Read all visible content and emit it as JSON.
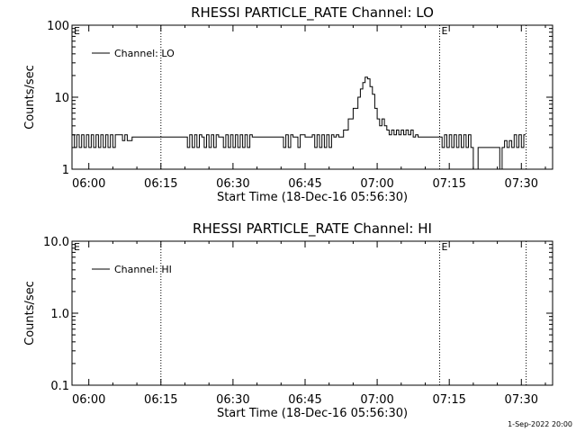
{
  "footer": {
    "timestamp": "1-Sep-2022 20:00"
  },
  "chart_data": [
    {
      "type": "line",
      "title": "RHESSI PARTICLE_RATE Channel: LO",
      "xlabel": "Start Time (18-Dec-16 05:56:30)",
      "ylabel": "Counts/sec",
      "xlim": [
        "05:56:30",
        "07:36:30"
      ],
      "x_ticks": [
        "06:00",
        "06:15",
        "06:30",
        "06:45",
        "07:00",
        "07:15",
        "07:30"
      ],
      "ylim": [
        1,
        100
      ],
      "y_scale": "log",
      "y_ticks": [
        "1",
        "10",
        "100"
      ],
      "grid": false,
      "legend_position": "top-left",
      "event_markers": [
        {
          "time": "05:56:30",
          "label": "E"
        },
        {
          "time": "07:13:00",
          "label": "E"
        }
      ],
      "dotted_lines": [
        "06:15",
        "07:13",
        "07:31"
      ],
      "series": [
        {
          "name": "Channel: LO",
          "x": [
            "05:56:30",
            "05:57:00",
            "05:57:30",
            "05:58:00",
            "05:58:30",
            "05:59:00",
            "05:59:30",
            "06:00:00",
            "06:00:30",
            "06:01:00",
            "06:01:30",
            "06:02:00",
            "06:02:30",
            "06:03:00",
            "06:03:30",
            "06:04:00",
            "06:04:30",
            "06:05:00",
            "06:05:30",
            "06:06:00",
            "06:06:30",
            "06:07:00",
            "06:07:30",
            "06:08:00",
            "06:09:00",
            "06:10:00",
            "06:11:00",
            "06:12:00",
            "06:13:00",
            "06:14:00",
            "06:15:00",
            "06:18:00",
            "06:20:00",
            "06:20:30",
            "06:21:00",
            "06:21:30",
            "06:22:00",
            "06:22:30",
            "06:23:00",
            "06:23:30",
            "06:24:00",
            "06:24:30",
            "06:25:00",
            "06:25:30",
            "06:26:00",
            "06:26:30",
            "06:27:00",
            "06:28:00",
            "06:28:30",
            "06:29:00",
            "06:29:30",
            "06:30:00",
            "06:30:30",
            "06:31:00",
            "06:31:30",
            "06:32:00",
            "06:32:30",
            "06:33:00",
            "06:33:30",
            "06:34:00",
            "06:34:30",
            "06:35:00",
            "06:40:00",
            "06:40:30",
            "06:41:00",
            "06:41:30",
            "06:42:00",
            "06:42:30",
            "06:43:00",
            "06:43:30",
            "06:44:00",
            "06:45:00",
            "06:46:00",
            "06:46:30",
            "06:47:00",
            "06:47:30",
            "06:48:00",
            "06:48:30",
            "06:49:00",
            "06:49:30",
            "06:50:00",
            "06:50:30",
            "06:51:00",
            "06:51:30",
            "06:52:00",
            "06:53:00",
            "06:54:00",
            "06:55:00",
            "06:56:00",
            "06:56:30",
            "06:57:00",
            "06:57:30",
            "06:58:00",
            "06:58:30",
            "06:59:00",
            "06:59:30",
            "07:00:00",
            "07:00:30",
            "07:01:00",
            "07:01:30",
            "07:02:00",
            "07:02:30",
            "07:03:00",
            "07:03:30",
            "07:04:00",
            "07:04:30",
            "07:05:00",
            "07:05:30",
            "07:06:00",
            "07:06:30",
            "07:07:00",
            "07:07:30",
            "07:08:00",
            "07:08:30",
            "07:09:00",
            "07:09:30",
            "07:10:00",
            "07:13:00",
            "07:13:30",
            "07:14:00",
            "07:14:30",
            "07:15:00",
            "07:15:30",
            "07:16:00",
            "07:16:30",
            "07:17:00",
            "07:17:30",
            "07:18:00",
            "07:18:30",
            "07:19:00",
            "07:19:30",
            "07:20:00",
            "07:21:00",
            "07:22:00",
            "07:23:00",
            "07:24:00",
            "07:25:00",
            "07:25:30",
            "07:26:00",
            "07:26:30",
            "07:27:00",
            "07:27:30",
            "07:28:00",
            "07:28:30",
            "07:29:00",
            "07:29:30",
            "07:30:00",
            "07:30:30"
          ],
          "y": [
            3,
            2,
            3,
            2,
            3,
            2,
            3,
            2,
            3,
            2,
            3,
            2,
            3,
            2,
            3,
            2,
            3,
            2,
            3,
            3,
            3,
            2.5,
            3,
            2.5,
            2.8,
            2.8,
            2.8,
            2.8,
            2.8,
            2.8,
            2.8,
            2.8,
            2.8,
            2,
            3,
            2,
            3,
            2,
            3,
            2.8,
            2,
            3,
            2,
            3,
            2,
            3,
            2.8,
            2,
            3,
            2,
            3,
            2,
            3,
            2,
            3,
            2,
            3,
            2,
            3,
            2.8,
            2.8,
            2.8,
            2.8,
            2,
            3,
            2,
            3,
            2.8,
            2.8,
            2,
            3,
            2.8,
            2.8,
            3,
            2,
            3,
            2,
            3,
            2,
            3,
            2,
            3,
            2.8,
            3,
            2.8,
            3.5,
            5,
            7,
            10,
            13,
            16,
            19,
            18,
            14,
            11,
            7,
            5,
            4,
            5,
            4,
            3.5,
            3,
            3.5,
            3,
            3.5,
            3,
            3.5,
            3,
            3.5,
            3,
            3.5,
            2.8,
            3,
            2.8,
            2.8,
            2.8,
            2.8,
            2.8,
            2,
            3,
            2,
            3,
            2,
            3,
            2,
            3,
            2,
            3,
            2,
            3,
            2,
            1,
            2,
            2,
            2,
            2,
            2,
            1,
            2,
            2.5,
            2,
            2.5,
            2,
            3,
            2,
            3,
            2,
            3
          ]
        }
      ]
    },
    {
      "type": "line",
      "title": "RHESSI PARTICLE_RATE Channel: HI",
      "xlabel": "Start Time (18-Dec-16 05:56:30)",
      "ylabel": "Counts/sec",
      "xlim": [
        "05:56:30",
        "07:36:30"
      ],
      "x_ticks": [
        "06:00",
        "06:15",
        "06:30",
        "06:45",
        "07:00",
        "07:15",
        "07:30"
      ],
      "ylim": [
        0.1,
        10
      ],
      "y_scale": "log",
      "y_ticks": [
        "0.1",
        "1.0",
        "10.0"
      ],
      "grid": false,
      "legend_position": "top-left",
      "event_markers": [
        {
          "time": "05:56:30",
          "label": "E"
        },
        {
          "time": "07:13:00",
          "label": "E"
        }
      ],
      "dotted_lines": [
        "06:15",
        "07:13",
        "07:31"
      ],
      "series": [
        {
          "name": "Channel: HI",
          "x": [],
          "y": []
        }
      ]
    }
  ]
}
